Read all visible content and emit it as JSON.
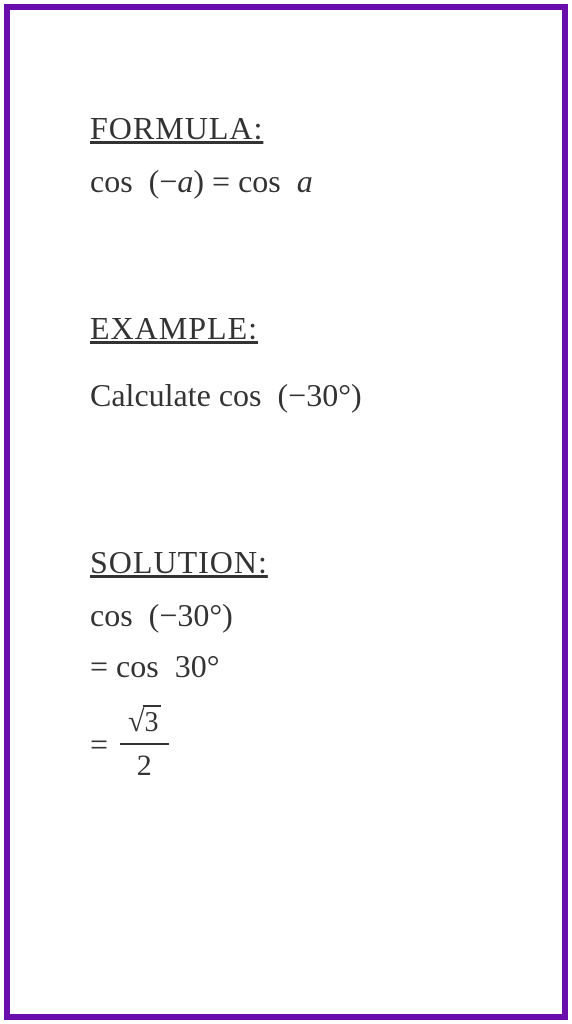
{
  "border_color": "#6a0dad",
  "text_color": "#333333",
  "background_color": "#ffffff",
  "heading_fontsize": 32,
  "body_fontsize": 32,
  "formula": {
    "heading": "FORMULA:",
    "expression_lhs": "cos  (−",
    "expression_var": "a",
    "expression_mid": ") = cos  ",
    "expression_rhs_var": "a"
  },
  "example": {
    "heading": "EXAMPLE:",
    "prompt_prefix": "Calculate cos  (−30°)"
  },
  "solution": {
    "heading": "SOLUTION:",
    "line1": "cos  (−30°)",
    "line2": "= cos  30°",
    "equals": "=",
    "sqrt_symbol": "√",
    "sqrt_radicand": "3",
    "denominator": "2"
  }
}
